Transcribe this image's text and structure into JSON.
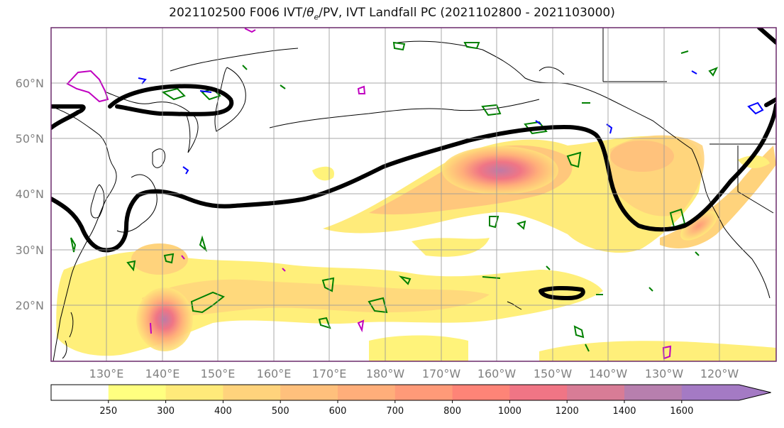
{
  "title": {
    "prefix": "2021102500 F006 IVT/",
    "theta": "θ",
    "theta_sub": "e",
    "suffix": "/PV, IVT Landfall PC (2021102800 - 2021103000)"
  },
  "map": {
    "lat_labels": [
      "60°N",
      "50°N",
      "40°N",
      "30°N",
      "20°N"
    ],
    "lon_labels": [
      "130°E",
      "140°E",
      "150°E",
      "160°E",
      "170°E",
      "180°W",
      "170°W",
      "160°W",
      "150°W",
      "140°W",
      "130°W",
      "120°W"
    ],
    "gridlines": true,
    "colors": {
      "coast": "#000000",
      "landfall_pc_contour": "#000000",
      "pv_low_contour": "#0000ff",
      "theta_e_contour": "#008000",
      "pv_high_contour": "#c000c0"
    }
  },
  "colorbar": {
    "ticks": [
      "250",
      "300",
      "400",
      "500",
      "600",
      "700",
      "800",
      "1000",
      "1200",
      "1400",
      "1600"
    ],
    "colors": [
      "#ffff80",
      "#ffea7a",
      "#ffd37c",
      "#ffc07c",
      "#ffae7a",
      "#ff9a78",
      "#fe8477",
      "#f07585",
      "#d87c96",
      "#b77fae",
      "#a47ac4"
    ],
    "extend": "max"
  }
}
